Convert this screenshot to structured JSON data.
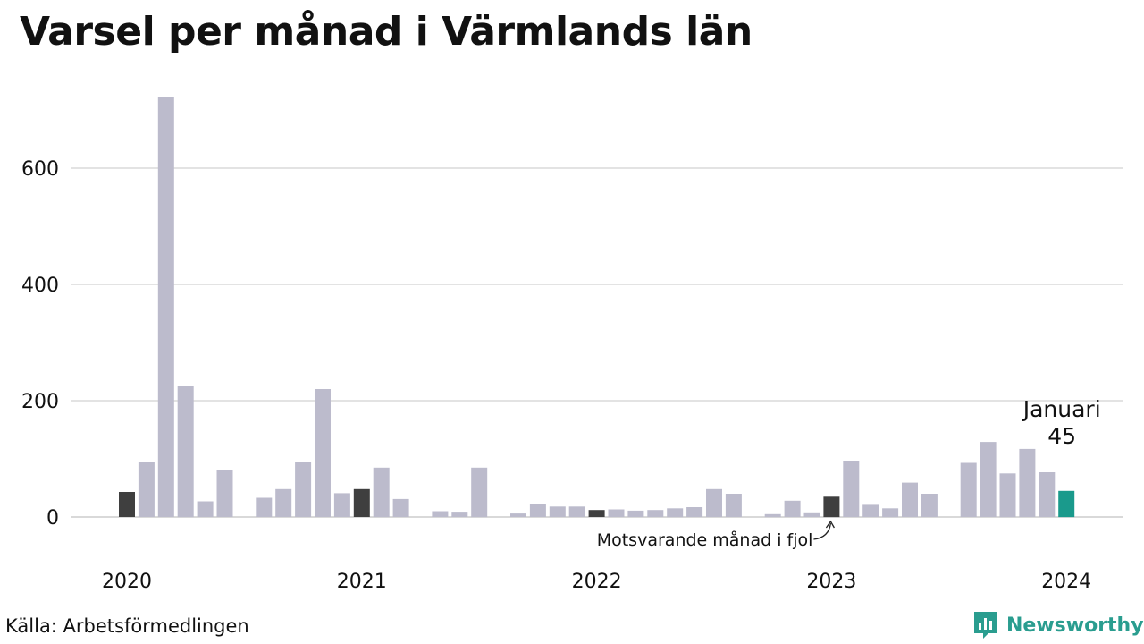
{
  "title": "Varsel per månad i Värmlands län",
  "source": "Källa: Arbetsförmedlingen",
  "brand": {
    "name": "Newsworthy",
    "icon": "newsworthy-logo-icon",
    "color": "#2a9d8f"
  },
  "chart_data": {
    "type": "bar",
    "title": "Varsel per månad i Värmlands län",
    "xlabel": "",
    "ylabel": "",
    "ylim": [
      0,
      720
    ],
    "yticks": [
      0,
      200,
      400,
      600
    ],
    "xticks": [
      "2020",
      "2021",
      "2022",
      "2023",
      "2024"
    ],
    "grid": true,
    "colors": {
      "default": "#bcbbcc",
      "same_month_prev_years": "#3f3f3f",
      "current": "#1a9a8c"
    },
    "series": [
      {
        "values": [
          43,
          94,
          722,
          225,
          27,
          80,
          null,
          33,
          48,
          94,
          220,
          41,
          48,
          85,
          31,
          null,
          10,
          9,
          85,
          null,
          6,
          22,
          18,
          18,
          12,
          13,
          11,
          12,
          15,
          17,
          48,
          40,
          null,
          5,
          28,
          8,
          35,
          97,
          21,
          15,
          59,
          40,
          null,
          93,
          129,
          75,
          117,
          77,
          45
        ]
      }
    ],
    "highlights": {
      "same_month_prev_years": [
        0,
        12,
        24,
        36
      ],
      "current": 48
    },
    "annotations": {
      "current_month_label": "Januari",
      "current_value_label": "45",
      "previous_year_note": "Motsvarande månad i fjol"
    }
  }
}
